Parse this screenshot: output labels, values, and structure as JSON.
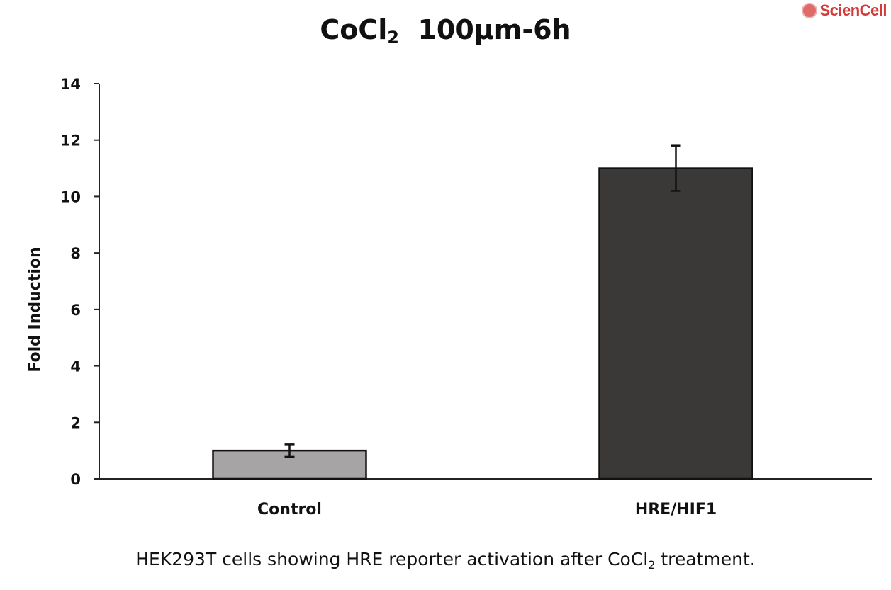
{
  "logo": {
    "text": "ScienCell"
  },
  "chart_data": {
    "type": "bar",
    "title": {
      "main": "CoCl",
      "sub": "2",
      "rest": "  100µm-6h"
    },
    "categories": [
      "Control",
      "HRE/HIF1"
    ],
    "values": [
      1.0,
      11.0
    ],
    "errors": [
      0.22,
      0.8
    ],
    "colors": [
      "#a6a4a4",
      "#3a3938"
    ],
    "ylabel": "Fold Induction",
    "xlabel": "",
    "ylim": [
      0,
      14
    ],
    "yticks": [
      0,
      2,
      4,
      6,
      8,
      10,
      12,
      14
    ],
    "grid": false,
    "legend": "none"
  },
  "caption": {
    "pre": "HEK293T cells showing HRE reporter activation after CoCl",
    "sub": "2",
    "post": " treatment."
  }
}
